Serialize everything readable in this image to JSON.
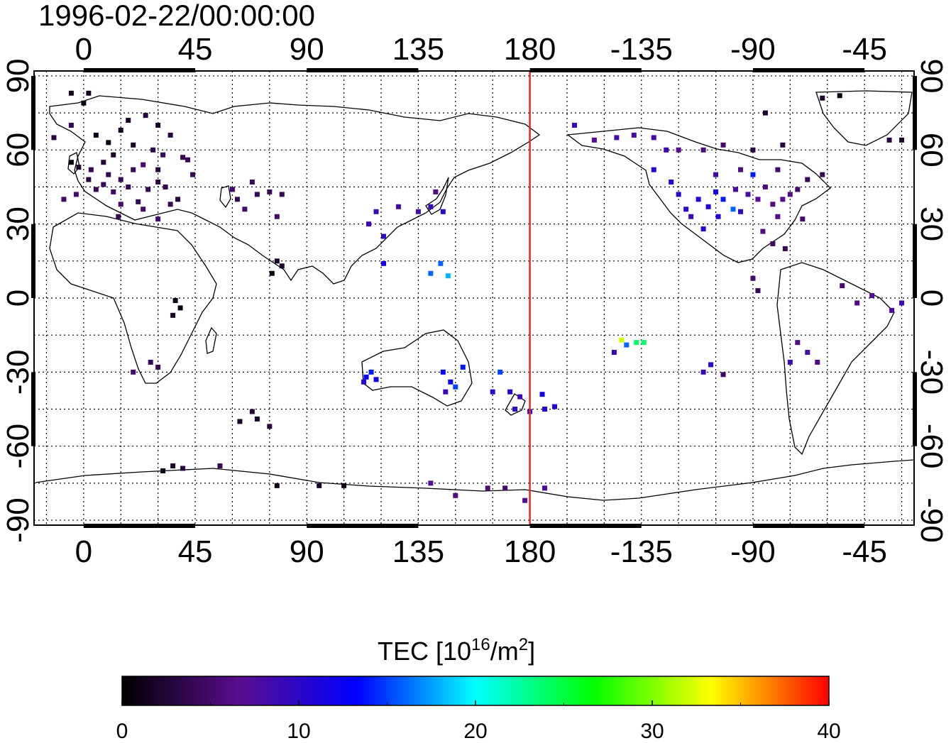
{
  "title": "1996-02-22/00:00:00",
  "map": {
    "lon_ticks": [
      "0",
      "45",
      "90",
      "135",
      "180",
      "-135",
      "-90",
      "-45"
    ],
    "lon_tick_values": [
      0,
      45,
      90,
      135,
      180,
      225,
      270,
      315
    ],
    "lat_ticks": [
      "90",
      "60",
      "30",
      "0",
      "-30",
      "-60",
      "-90"
    ],
    "lat_tick_values": [
      90,
      60,
      30,
      0,
      -30,
      -60,
      -90
    ],
    "lon_range": [
      -20,
      335
    ],
    "lat_range": [
      -92,
      92
    ],
    "grid": "dotted, every 15 degrees",
    "dateline_longitude": 180,
    "dateline_color": "#e8281e"
  },
  "colorbar": {
    "label_main": "TEC  [10",
    "label_sup1": "16",
    "label_mid": "/m",
    "label_sup2": "2",
    "label_end": "]",
    "ticks": [
      "0",
      "10",
      "20",
      "30",
      "40"
    ],
    "tick_values": [
      0,
      10,
      20,
      30,
      40
    ],
    "range": [
      0,
      40
    ],
    "colormap_stops": [
      "#000000",
      "#5a0d8f",
      "#0000ff",
      "#00ffff",
      "#00ff00",
      "#ffff00",
      "#ff0000"
    ]
  },
  "stations": [
    {
      "lon": 2,
      "lat": 83,
      "tec": 1.5
    },
    {
      "lon": -5,
      "lat": 83,
      "tec": 1.5
    },
    {
      "lon": 0,
      "lat": 79,
      "tec": 1
    },
    {
      "lon": -12,
      "lat": 65,
      "tec": 3
    },
    {
      "lon": -5,
      "lat": 70,
      "tec": 4
    },
    {
      "lon": 5,
      "lat": 66,
      "tec": 1
    },
    {
      "lon": 10,
      "lat": 63,
      "tec": 1
    },
    {
      "lon": 15,
      "lat": 68,
      "tec": 1.5
    },
    {
      "lon": 18,
      "lat": 72,
      "tec": 2
    },
    {
      "lon": 25,
      "lat": 74,
      "tec": 3
    },
    {
      "lon": 30,
      "lat": 70,
      "tec": 2
    },
    {
      "lon": 35,
      "lat": 66,
      "tec": 3
    },
    {
      "lon": 20,
      "lat": 62,
      "tec": 2
    },
    {
      "lon": 28,
      "lat": 60,
      "tec": 3
    },
    {
      "lon": 32,
      "lat": 58,
      "tec": 4
    },
    {
      "lon": 40,
      "lat": 57,
      "tec": 4
    },
    {
      "lon": 12,
      "lat": 58,
      "tec": 2
    },
    {
      "lon": 8,
      "lat": 55,
      "tec": 3
    },
    {
      "lon": 3,
      "lat": 52,
      "tec": 4
    },
    {
      "lon": -2,
      "lat": 53,
      "tec": 2
    },
    {
      "lon": -5,
      "lat": 55,
      "tec": 0.5
    },
    {
      "lon": 10,
      "lat": 50,
      "tec": 4
    },
    {
      "lon": 15,
      "lat": 48,
      "tec": 4
    },
    {
      "lon": 20,
      "lat": 52,
      "tec": 4
    },
    {
      "lon": 24,
      "lat": 54,
      "tec": 5
    },
    {
      "lon": 18,
      "lat": 45,
      "tec": 4
    },
    {
      "lon": 12,
      "lat": 43,
      "tec": 5
    },
    {
      "lon": 8,
      "lat": 46,
      "tec": 4
    },
    {
      "lon": 5,
      "lat": 44,
      "tec": 4
    },
    {
      "lon": 2,
      "lat": 48,
      "tec": 3
    },
    {
      "lon": -3,
      "lat": 42,
      "tec": 5
    },
    {
      "lon": -8,
      "lat": 40,
      "tec": 5
    },
    {
      "lon": 15,
      "lat": 38,
      "tec": 5
    },
    {
      "lon": 22,
      "lat": 39,
      "tec": 4
    },
    {
      "lon": 26,
      "lat": 44,
      "tec": 4
    },
    {
      "lon": 30,
      "lat": 47,
      "tec": 3
    },
    {
      "lon": 33,
      "lat": 45,
      "tec": 4
    },
    {
      "lon": 35,
      "lat": 38,
      "tec": 4
    },
    {
      "lon": 38,
      "lat": 40,
      "tec": 3
    },
    {
      "lon": 24,
      "lat": 36,
      "tec": 5
    },
    {
      "lon": 44,
      "lat": 50,
      "tec": 4
    },
    {
      "lon": 42,
      "lat": 56,
      "tec": 4
    },
    {
      "lon": 30,
      "lat": 52,
      "tec": 3
    },
    {
      "lon": 14,
      "lat": 33,
      "tec": 4
    },
    {
      "lon": 30,
      "lat": 32,
      "tec": 5
    },
    {
      "lon": 62,
      "lat": 40,
      "tec": 4
    },
    {
      "lon": 70,
      "lat": 42,
      "tec": 4
    },
    {
      "lon": 75,
      "lat": 43,
      "tec": 4
    },
    {
      "lon": 80,
      "lat": 42,
      "tec": 4
    },
    {
      "lon": 68,
      "lat": 47,
      "tec": 4
    },
    {
      "lon": 60,
      "lat": 44,
      "tec": 5
    },
    {
      "lon": 65,
      "lat": 36,
      "tec": 5
    },
    {
      "lon": 78,
      "lat": 33,
      "tec": 5
    },
    {
      "lon": 76,
      "lat": 10,
      "tec": 1
    },
    {
      "lon": 78,
      "lat": 15,
      "tec": 2
    },
    {
      "lon": 80,
      "lat": 13,
      "tec": 2
    },
    {
      "lon": 37,
      "lat": -1,
      "tec": 1
    },
    {
      "lon": 39,
      "lat": -4,
      "tec": 1
    },
    {
      "lon": 36,
      "lat": -7,
      "tec": 2
    },
    {
      "lon": 27,
      "lat": -26,
      "tec": 4
    },
    {
      "lon": 30,
      "lat": -28,
      "tec": 4
    },
    {
      "lon": 20,
      "lat": -30,
      "tec": 5
    },
    {
      "lon": 63,
      "lat": -50,
      "tec": 2
    },
    {
      "lon": 70,
      "lat": -49,
      "tec": 2
    },
    {
      "lon": 75,
      "lat": -52,
      "tec": 3
    },
    {
      "lon": 68,
      "lat": -46,
      "tec": 3
    },
    {
      "lon": 36,
      "lat": -68,
      "tec": 2
    },
    {
      "lon": 32,
      "lat": -70,
      "tec": 1
    },
    {
      "lon": 40,
      "lat": -69,
      "tec": 3
    },
    {
      "lon": 55,
      "lat": -68,
      "tec": 4
    },
    {
      "lon": 78,
      "lat": -76,
      "tec": 1
    },
    {
      "lon": 95,
      "lat": -76,
      "tec": 2
    },
    {
      "lon": 105,
      "lat": -76,
      "tec": 1
    },
    {
      "lon": 140,
      "lat": -75,
      "tec": 7
    },
    {
      "lon": 150,
      "lat": -80,
      "tec": 6
    },
    {
      "lon": 163,
      "lat": -77,
      "tec": 6
    },
    {
      "lon": 170,
      "lat": -77,
      "tec": 5
    },
    {
      "lon": 178,
      "lat": -82,
      "tec": 7
    },
    {
      "lon": 186,
      "lat": -77,
      "tec": 8
    },
    {
      "lon": 115,
      "lat": 30,
      "tec": 9
    },
    {
      "lon": 118,
      "lat": 35,
      "tec": 9
    },
    {
      "lon": 121,
      "lat": 25,
      "tec": 10
    },
    {
      "lon": 127,
      "lat": 37,
      "tec": 8
    },
    {
      "lon": 135,
      "lat": 35,
      "tec": 8
    },
    {
      "lon": 140,
      "lat": 37,
      "tec": 9
    },
    {
      "lon": 142,
      "lat": 43,
      "tec": 6
    },
    {
      "lon": 145,
      "lat": 35,
      "tec": 10
    },
    {
      "lon": 121,
      "lat": 14,
      "tec": 12
    },
    {
      "lon": 144,
      "lat": 14,
      "tec": 16
    },
    {
      "lon": 147,
      "lat": 9,
      "tec": 18
    },
    {
      "lon": 140,
      "lat": 10,
      "tec": 16
    },
    {
      "lon": 114,
      "lat": -32,
      "tec": 13
    },
    {
      "lon": 116,
      "lat": -30,
      "tec": 14
    },
    {
      "lon": 118,
      "lat": -33,
      "tec": 12
    },
    {
      "lon": 113,
      "lat": -34,
      "tec": 11
    },
    {
      "lon": 145,
      "lat": -30,
      "tec": 13
    },
    {
      "lon": 148,
      "lat": -34,
      "tec": 13
    },
    {
      "lon": 150,
      "lat": -36,
      "tec": 15
    },
    {
      "lon": 153,
      "lat": -28,
      "tec": 14
    },
    {
      "lon": 146,
      "lat": -38,
      "tec": 9
    },
    {
      "lon": 168,
      "lat": -30,
      "tec": 15
    },
    {
      "lon": 172,
      "lat": -38,
      "tec": 11
    },
    {
      "lon": 176,
      "lat": -40,
      "tec": 9
    },
    {
      "lon": 174,
      "lat": -45,
      "tec": 10
    },
    {
      "lon": 185,
      "lat": -39,
      "tec": 12
    },
    {
      "lon": 180,
      "lat": -46,
      "tec": 10
    },
    {
      "lon": 186,
      "lat": -45,
      "tec": 11
    },
    {
      "lon": 190,
      "lat": -44,
      "tec": 11
    },
    {
      "lon": 165,
      "lat": -38,
      "tec": 10
    },
    {
      "lon": 217,
      "lat": -17,
      "tec": 32
    },
    {
      "lon": 219,
      "lat": -19,
      "tec": 16
    },
    {
      "lon": 223,
      "lat": -18,
      "tec": 24
    },
    {
      "lon": 226,
      "lat": -18,
      "tec": 24
    },
    {
      "lon": 214,
      "lat": -22,
      "tec": 9
    },
    {
      "lon": 198,
      "lat": 70,
      "tec": 9
    },
    {
      "lon": 206,
      "lat": 64,
      "tec": 7
    },
    {
      "lon": 215,
      "lat": 65,
      "tec": 8
    },
    {
      "lon": 222,
      "lat": 66,
      "tec": 8
    },
    {
      "lon": 230,
      "lat": 65,
      "tec": 8
    },
    {
      "lon": 235,
      "lat": 60,
      "tec": 9
    },
    {
      "lon": 230,
      "lat": 52,
      "tec": 11
    },
    {
      "lon": 237,
      "lat": 47,
      "tec": 11
    },
    {
      "lon": 240,
      "lat": 42,
      "tec": 10
    },
    {
      "lon": 243,
      "lat": 36,
      "tec": 10
    },
    {
      "lon": 245,
      "lat": 33,
      "tec": 9
    },
    {
      "lon": 248,
      "lat": 40,
      "tec": 11
    },
    {
      "lon": 252,
      "lat": 37,
      "tec": 11
    },
    {
      "lon": 255,
      "lat": 43,
      "tec": 12
    },
    {
      "lon": 258,
      "lat": 40,
      "tec": 14
    },
    {
      "lon": 262,
      "lat": 36,
      "tec": 16
    },
    {
      "lon": 256,
      "lat": 33,
      "tec": 11
    },
    {
      "lon": 250,
      "lat": 28,
      "tec": 11
    },
    {
      "lon": 263,
      "lat": 44,
      "tec": 8
    },
    {
      "lon": 265,
      "lat": 35,
      "tec": 10
    },
    {
      "lon": 268,
      "lat": 42,
      "tec": 8
    },
    {
      "lon": 272,
      "lat": 40,
      "tec": 7
    },
    {
      "lon": 275,
      "lat": 45,
      "tec": 6
    },
    {
      "lon": 278,
      "lat": 38,
      "tec": 6
    },
    {
      "lon": 282,
      "lat": 40,
      "tec": 7
    },
    {
      "lon": 285,
      "lat": 42,
      "tec": 6
    },
    {
      "lon": 288,
      "lat": 44,
      "tec": 5
    },
    {
      "lon": 280,
      "lat": 33,
      "tec": 6
    },
    {
      "lon": 290,
      "lat": 32,
      "tec": 5
    },
    {
      "lon": 274,
      "lat": 27,
      "tec": 6
    },
    {
      "lon": 278,
      "lat": 22,
      "tec": 5
    },
    {
      "lon": 283,
      "lat": 20,
      "tec": 4
    },
    {
      "lon": 270,
      "lat": 50,
      "tec": 14
    },
    {
      "lon": 255,
      "lat": 50,
      "tec": 8
    },
    {
      "lon": 265,
      "lat": 52,
      "tec": 6
    },
    {
      "lon": 280,
      "lat": 52,
      "tec": 5
    },
    {
      "lon": 292,
      "lat": 48,
      "tec": 4
    },
    {
      "lon": 240,
      "lat": 60,
      "tec": 7
    },
    {
      "lon": 250,
      "lat": 60,
      "tec": 6
    },
    {
      "lon": 258,
      "lat": 62,
      "tec": 5
    },
    {
      "lon": 270,
      "lat": 60,
      "tec": 3
    },
    {
      "lon": 282,
      "lat": 62,
      "tec": 3
    },
    {
      "lon": 298,
      "lat": 81,
      "tec": 2
    },
    {
      "lon": 305,
      "lat": 82,
      "tec": 1
    },
    {
      "lon": 275,
      "lat": 75,
      "tec": 2
    },
    {
      "lon": 325,
      "lat": 64,
      "tec": 3
    },
    {
      "lon": 330,
      "lat": 64,
      "tec": 2
    },
    {
      "lon": 298,
      "lat": 50,
      "tec": 4
    },
    {
      "lon": 270,
      "lat": 8,
      "tec": 5
    },
    {
      "lon": 272,
      "lat": 3,
      "tec": 4
    },
    {
      "lon": 288,
      "lat": -18,
      "tec": 6
    },
    {
      "lon": 292,
      "lat": -22,
      "tec": 8
    },
    {
      "lon": 296,
      "lat": -26,
      "tec": 6
    },
    {
      "lon": 285,
      "lat": -26,
      "tec": 9
    },
    {
      "lon": 253,
      "lat": -27,
      "tec": 10
    },
    {
      "lon": 250,
      "lat": -30,
      "tec": 9
    },
    {
      "lon": 258,
      "lat": -31,
      "tec": 5
    },
    {
      "lon": 312,
      "lat": -2,
      "tec": 6
    },
    {
      "lon": 318,
      "lat": 1,
      "tec": 7
    },
    {
      "lon": 326,
      "lat": -5,
      "tec": 8
    },
    {
      "lon": 330,
      "lat": -2,
      "tec": 9
    },
    {
      "lon": 306,
      "lat": 5,
      "tec": 5
    }
  ]
}
